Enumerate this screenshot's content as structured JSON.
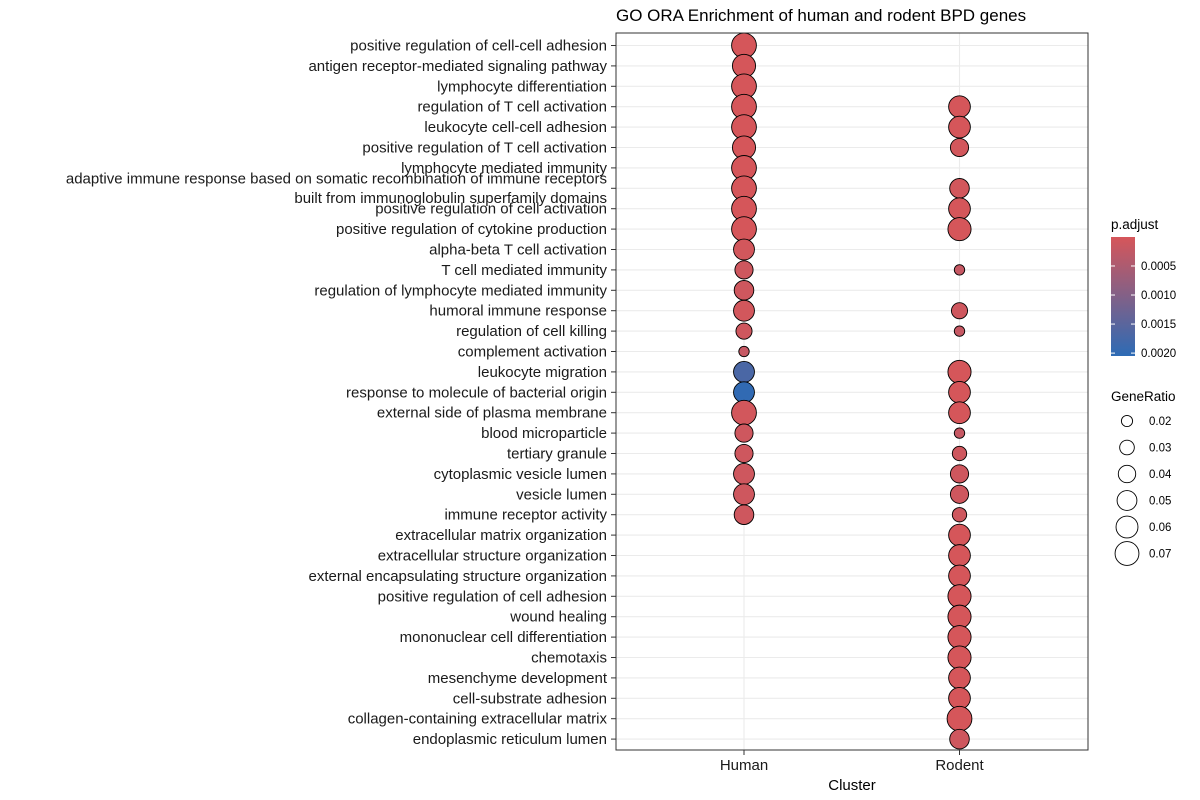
{
  "chart_data": {
    "type": "scatter",
    "title": "GO ORA Enrichment of human and rodent BPD genes",
    "xlabel": "Cluster",
    "ylabel": "",
    "categories": [
      "Human",
      "Rodent"
    ],
    "terms": [
      "positive regulation of cell-cell adhesion",
      "antigen receptor-mediated signaling pathway",
      "lymphocyte differentiation",
      "regulation of T cell activation",
      "leukocyte cell-cell adhesion",
      "positive regulation of T cell activation",
      "lymphocyte mediated immunity",
      "adaptive immune response based on somatic recombination of immune receptors built from immunoglobulin superfamily domains",
      "positive regulation of cell activation",
      "positive regulation of cytokine production",
      "alpha-beta T cell activation",
      "T cell mediated immunity",
      "regulation of lymphocyte mediated immunity",
      "humoral immune response",
      "regulation of cell killing",
      "complement activation",
      "leukocyte migration",
      "response to molecule of bacterial origin",
      "external side of plasma membrane",
      "blood microparticle",
      "tertiary granule",
      "cytoplasmic vesicle lumen",
      "vesicle lumen",
      "immune receptor activity",
      "extracellular matrix organization",
      "extracellular structure organization",
      "external encapsulating structure organization",
      "positive regulation of cell adhesion",
      "wound healing",
      "mononuclear cell differentiation",
      "chemotaxis",
      "mesenchyme development",
      "cell-substrate adhesion",
      "collagen-containing extracellular matrix",
      "endoplasmic reticulum lumen"
    ],
    "term_display_lines": [
      [
        "positive regulation of cell-cell adhesion"
      ],
      [
        "antigen receptor-mediated signaling pathway"
      ],
      [
        "lymphocyte differentiation"
      ],
      [
        "regulation of T cell activation"
      ],
      [
        "leukocyte cell-cell adhesion"
      ],
      [
        "positive regulation of T cell activation"
      ],
      [
        "lymphocyte mediated immunity"
      ],
      [
        "adaptive immune response based on somatic recombination of immune receptors",
        "built from immunoglobulin superfamily domains"
      ],
      [
        "positive regulation of cell activation"
      ],
      [
        "positive regulation of cytokine production"
      ],
      [
        "alpha-beta T cell activation"
      ],
      [
        "T cell mediated immunity"
      ],
      [
        "regulation of lymphocyte mediated immunity"
      ],
      [
        "humoral immune response"
      ],
      [
        "regulation of cell killing"
      ],
      [
        "complement activation"
      ],
      [
        "leukocyte migration"
      ],
      [
        "response to molecule of bacterial origin"
      ],
      [
        "external side of plasma membrane"
      ],
      [
        "blood microparticle"
      ],
      [
        "tertiary granule"
      ],
      [
        "cytoplasmic vesicle lumen"
      ],
      [
        "vesicle lumen"
      ],
      [
        "immune receptor activity"
      ],
      [
        "extracellular matrix organization"
      ],
      [
        "extracellular structure organization"
      ],
      [
        "external encapsulating structure organization"
      ],
      [
        "positive regulation of cell adhesion"
      ],
      [
        "wound healing"
      ],
      [
        "mononuclear cell differentiation"
      ],
      [
        "chemotaxis"
      ],
      [
        "mesenchyme development"
      ],
      [
        "cell-substrate adhesion"
      ],
      [
        "collagen-containing extracellular matrix"
      ],
      [
        "endoplasmic reticulum lumen"
      ]
    ],
    "points": [
      {
        "cluster": "Human",
        "term": "positive regulation of cell-cell adhesion",
        "gene_ratio": 0.075,
        "p_adjust": 1e-05
      },
      {
        "cluster": "Human",
        "term": "antigen receptor-mediated signaling pathway",
        "gene_ratio": 0.066,
        "p_adjust": 1e-05
      },
      {
        "cluster": "Human",
        "term": "lymphocyte differentiation",
        "gene_ratio": 0.075,
        "p_adjust": 1e-05
      },
      {
        "cluster": "Human",
        "term": "regulation of T cell activation",
        "gene_ratio": 0.075,
        "p_adjust": 1e-05
      },
      {
        "cluster": "Human",
        "term": "leukocyte cell-cell adhesion",
        "gene_ratio": 0.075,
        "p_adjust": 1e-05
      },
      {
        "cluster": "Human",
        "term": "positive regulation of T cell activation",
        "gene_ratio": 0.066,
        "p_adjust": 1e-05
      },
      {
        "cluster": "Human",
        "term": "lymphocyte mediated immunity",
        "gene_ratio": 0.075,
        "p_adjust": 1e-05
      },
      {
        "cluster": "Human",
        "term": "adaptive immune response based on somatic recombination of immune receptors built from immunoglobulin superfamily domains",
        "gene_ratio": 0.075,
        "p_adjust": 1e-05
      },
      {
        "cluster": "Human",
        "term": "positive regulation of cell activation",
        "gene_ratio": 0.075,
        "p_adjust": 1e-05
      },
      {
        "cluster": "Human",
        "term": "positive regulation of cytokine production",
        "gene_ratio": 0.075,
        "p_adjust": 1e-05
      },
      {
        "cluster": "Human",
        "term": "alpha-beta T cell activation",
        "gene_ratio": 0.055,
        "p_adjust": 5e-05
      },
      {
        "cluster": "Human",
        "term": "T cell mediated immunity",
        "gene_ratio": 0.043,
        "p_adjust": 0.0001
      },
      {
        "cluster": "Human",
        "term": "regulation of lymphocyte mediated immunity",
        "gene_ratio": 0.049,
        "p_adjust": 0.0001
      },
      {
        "cluster": "Human",
        "term": "humoral immune response",
        "gene_ratio": 0.055,
        "p_adjust": 5e-05
      },
      {
        "cluster": "Human",
        "term": "regulation of cell killing",
        "gene_ratio": 0.035,
        "p_adjust": 0.0001
      },
      {
        "cluster": "Human",
        "term": "complement activation",
        "gene_ratio": 0.018,
        "p_adjust": 0.0002
      },
      {
        "cluster": "Human",
        "term": "leukocyte migration",
        "gene_ratio": 0.055,
        "p_adjust": 0.0017
      },
      {
        "cluster": "Human",
        "term": "response to molecule of bacterial origin",
        "gene_ratio": 0.055,
        "p_adjust": 0.002
      },
      {
        "cluster": "Human",
        "term": "external side of plasma membrane",
        "gene_ratio": 0.075,
        "p_adjust": 5e-05
      },
      {
        "cluster": "Human",
        "term": "blood microparticle",
        "gene_ratio": 0.043,
        "p_adjust": 0.0001
      },
      {
        "cluster": "Human",
        "term": "tertiary granule",
        "gene_ratio": 0.043,
        "p_adjust": 0.0001
      },
      {
        "cluster": "Human",
        "term": "cytoplasmic vesicle lumen",
        "gene_ratio": 0.055,
        "p_adjust": 0.0001
      },
      {
        "cluster": "Human",
        "term": "vesicle lumen",
        "gene_ratio": 0.055,
        "p_adjust": 0.0001
      },
      {
        "cluster": "Human",
        "term": "immune receptor activity",
        "gene_ratio": 0.049,
        "p_adjust": 0.0001
      },
      {
        "cluster": "Rodent",
        "term": "regulation of T cell activation",
        "gene_ratio": 0.059,
        "p_adjust": 1e-05
      },
      {
        "cluster": "Rodent",
        "term": "leukocyte cell-cell adhesion",
        "gene_ratio": 0.059,
        "p_adjust": 1e-05
      },
      {
        "cluster": "Rodent",
        "term": "positive regulation of T cell activation",
        "gene_ratio": 0.043,
        "p_adjust": 5e-05
      },
      {
        "cluster": "Rodent",
        "term": "adaptive immune response based on somatic recombination of immune receptors built from immunoglobulin superfamily domains",
        "gene_ratio": 0.049,
        "p_adjust": 5e-05
      },
      {
        "cluster": "Rodent",
        "term": "positive regulation of cell activation",
        "gene_ratio": 0.059,
        "p_adjust": 1e-05
      },
      {
        "cluster": "Rodent",
        "term": "positive regulation of cytokine production",
        "gene_ratio": 0.066,
        "p_adjust": 1e-05
      },
      {
        "cluster": "Rodent",
        "term": "T cell mediated immunity",
        "gene_ratio": 0.018,
        "p_adjust": 0.0002
      },
      {
        "cluster": "Rodent",
        "term": "humoral immune response",
        "gene_ratio": 0.035,
        "p_adjust": 0.0001
      },
      {
        "cluster": "Rodent",
        "term": "regulation of cell killing",
        "gene_ratio": 0.018,
        "p_adjust": 0.0002
      },
      {
        "cluster": "Rodent",
        "term": "leukocyte migration",
        "gene_ratio": 0.066,
        "p_adjust": 1e-05
      },
      {
        "cluster": "Rodent",
        "term": "response to molecule of bacterial origin",
        "gene_ratio": 0.059,
        "p_adjust": 1e-05
      },
      {
        "cluster": "Rodent",
        "term": "external side of plasma membrane",
        "gene_ratio": 0.059,
        "p_adjust": 1e-05
      },
      {
        "cluster": "Rodent",
        "term": "blood microparticle",
        "gene_ratio": 0.018,
        "p_adjust": 0.0002
      },
      {
        "cluster": "Rodent",
        "term": "tertiary granule",
        "gene_ratio": 0.029,
        "p_adjust": 0.0001
      },
      {
        "cluster": "Rodent",
        "term": "cytoplasmic vesicle lumen",
        "gene_ratio": 0.043,
        "p_adjust": 0.0001
      },
      {
        "cluster": "Rodent",
        "term": "vesicle lumen",
        "gene_ratio": 0.043,
        "p_adjust": 0.0001
      },
      {
        "cluster": "Rodent",
        "term": "immune receptor activity",
        "gene_ratio": 0.029,
        "p_adjust": 0.0001
      },
      {
        "cluster": "Rodent",
        "term": "extracellular matrix organization",
        "gene_ratio": 0.059,
        "p_adjust": 1e-05
      },
      {
        "cluster": "Rodent",
        "term": "extracellular structure organization",
        "gene_ratio": 0.059,
        "p_adjust": 1e-05
      },
      {
        "cluster": "Rodent",
        "term": "external encapsulating structure organization",
        "gene_ratio": 0.059,
        "p_adjust": 1e-05
      },
      {
        "cluster": "Rodent",
        "term": "positive regulation of cell adhesion",
        "gene_ratio": 0.066,
        "p_adjust": 1e-05
      },
      {
        "cluster": "Rodent",
        "term": "wound healing",
        "gene_ratio": 0.066,
        "p_adjust": 1e-05
      },
      {
        "cluster": "Rodent",
        "term": "mononuclear cell differentiation",
        "gene_ratio": 0.066,
        "p_adjust": 1e-05
      },
      {
        "cluster": "Rodent",
        "term": "chemotaxis",
        "gene_ratio": 0.066,
        "p_adjust": 1e-05
      },
      {
        "cluster": "Rodent",
        "term": "mesenchyme development",
        "gene_ratio": 0.059,
        "p_adjust": 1e-05
      },
      {
        "cluster": "Rodent",
        "term": "cell-substrate adhesion",
        "gene_ratio": 0.059,
        "p_adjust": 1e-05
      },
      {
        "cluster": "Rodent",
        "term": "collagen-containing extracellular matrix",
        "gene_ratio": 0.075,
        "p_adjust": 1e-05
      },
      {
        "cluster": "Rodent",
        "term": "endoplasmic reticulum lumen",
        "gene_ratio": 0.049,
        "p_adjust": 0.0001
      }
    ],
    "legend": {
      "color_title": "p.adjust",
      "color_ticks": [
        {
          "value": 0.0005,
          "label": "0.0005"
        },
        {
          "value": 0.001,
          "label": "0.0010"
        },
        {
          "value": 0.0015,
          "label": "0.0015"
        },
        {
          "value": 0.002,
          "label": "0.0020"
        }
      ],
      "color_range": [
        1e-06,
        0.00205
      ],
      "color_low": "#d6565a",
      "color_high": "#2d6bb5",
      "size_title": "GeneRatio",
      "size_ticks": [
        {
          "value": 0.02,
          "label": "0.02"
        },
        {
          "value": 0.03,
          "label": "0.03"
        },
        {
          "value": 0.04,
          "label": "0.04"
        },
        {
          "value": 0.05,
          "label": "0.05"
        },
        {
          "value": 0.06,
          "label": "0.06"
        },
        {
          "value": 0.07,
          "label": "0.07"
        }
      ],
      "placement": "right"
    },
    "grid": true,
    "colors": {
      "panel_border": "#333333",
      "grid": "#ebebeb",
      "point_stroke": "#000000"
    }
  }
}
